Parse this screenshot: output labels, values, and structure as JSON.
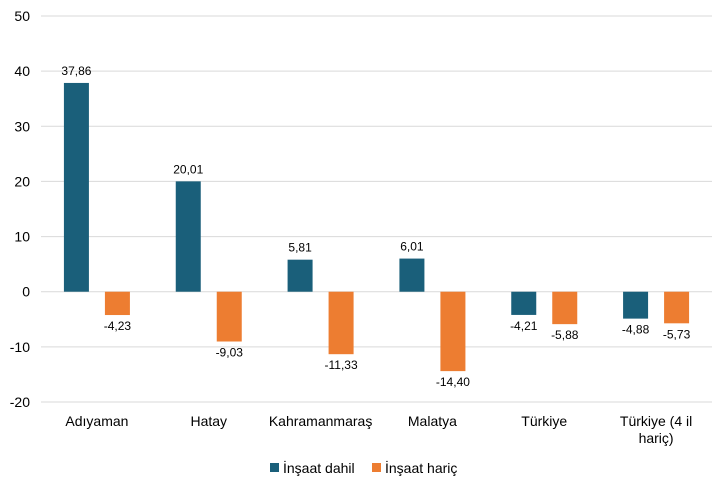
{
  "chart_data": {
    "type": "bar",
    "title": "",
    "xlabel": "",
    "ylabel": "",
    "ylim": [
      -20,
      50
    ],
    "yticks": [
      50,
      40,
      30,
      20,
      10,
      0,
      -10,
      -20
    ],
    "grid": true,
    "legend": "bottom",
    "categories": [
      "Adıyaman",
      "Hatay",
      "Kahramanmaraş",
      "Malatya",
      "Türkiye",
      "Türkiye (4 il hariç)"
    ],
    "category_lines": [
      [
        "Adıyaman"
      ],
      [
        "Hatay"
      ],
      [
        "Kahramanmaraş"
      ],
      [
        "Malatya"
      ],
      [
        "Türkiye"
      ],
      [
        "Türkiye (4 il",
        "hariç)"
      ]
    ],
    "series": [
      {
        "name": "İnşaat dahil",
        "color": "#1a5f7a",
        "values": [
          37.86,
          20.01,
          5.81,
          6.01,
          -4.21,
          -4.88
        ],
        "labels": [
          "37,86",
          "20,01",
          "5,81",
          "6,01",
          "-4,21",
          "-4,88"
        ]
      },
      {
        "name": "İnşaat hariç",
        "color": "#ed7d31",
        "values": [
          -4.23,
          -9.03,
          -11.33,
          -14.4,
          -5.88,
          -5.73
        ],
        "labels": [
          "-4,23",
          "-9,03",
          "-11,33",
          "-14,40",
          "-5,88",
          "-5,73"
        ]
      }
    ]
  }
}
